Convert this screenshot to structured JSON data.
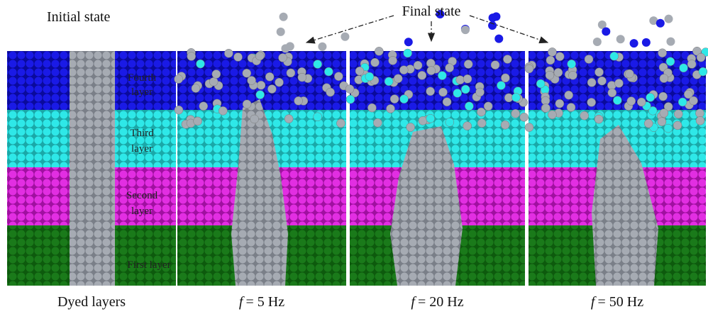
{
  "header": {
    "initial": "Initial state",
    "final": "Final state"
  },
  "layers": [
    {
      "lines": [
        "Fourth",
        "layer"
      ]
    },
    {
      "lines": [
        "Third",
        "layer"
      ]
    },
    {
      "lines": [
        "Second",
        "layer"
      ]
    },
    {
      "lines": [
        "First layer"
      ]
    }
  ],
  "captions": [
    {
      "text": "Dyed layers"
    },
    {
      "symbol": "f",
      "rest": "= 5 Hz"
    },
    {
      "symbol": "f",
      "rest": "= 20 Hz"
    },
    {
      "symbol": "f",
      "rest": "= 50 Hz"
    }
  ]
}
